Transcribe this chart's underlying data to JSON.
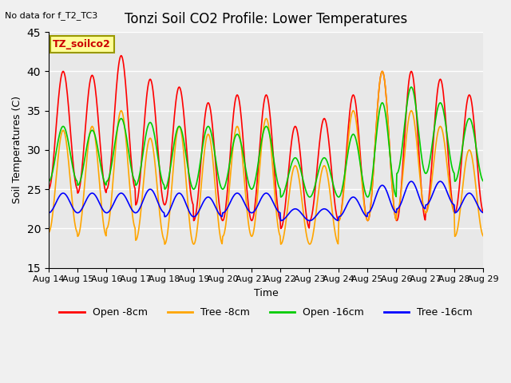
{
  "title": "Tonzi Soil CO2 Profile: Lower Temperatures",
  "subtitle": "No data for f_T2_TC3",
  "ylabel": "Soil Temperatures (C)",
  "xlabel": "Time",
  "ylim": [
    15,
    45
  ],
  "yticks": [
    15,
    20,
    25,
    30,
    35,
    40,
    45
  ],
  "date_labels": [
    "Aug 14",
    "Aug 15",
    "Aug 16",
    "Aug 17",
    "Aug 18",
    "Aug 19",
    "Aug 20",
    "Aug 21",
    "Aug 22",
    "Aug 23",
    "Aug 24",
    "Aug 25",
    "Aug 26",
    "Aug 27",
    "Aug 28",
    "Aug 29"
  ],
  "plot_bg": "#e8e8e8",
  "legend_label": "TZ_soilco2",
  "legend_box_color": "#ffff99",
  "legend_text_color": "#cc0000",
  "series": {
    "open_8cm": {
      "color": "#ff0000",
      "label": "Open -8cm",
      "amplitude_day": [
        15,
        15,
        17,
        16,
        15,
        15,
        16,
        16,
        13,
        13,
        16,
        19,
        19,
        17,
        15,
        14
      ],
      "min_vals": [
        25,
        24.5,
        25,
        23,
        23,
        21,
        21,
        21,
        20,
        21,
        21,
        21,
        21,
        22,
        22,
        22
      ]
    },
    "tree_8cm": {
      "color": "#ffa500",
      "label": "Tree -8cm",
      "amplitude_day": [
        13,
        14,
        15,
        13,
        15,
        14,
        14,
        15,
        10,
        10,
        14,
        19,
        13,
        11,
        11,
        10
      ],
      "min_vals": [
        19.5,
        19,
        20,
        18.5,
        18,
        18,
        19,
        19,
        18,
        18,
        21,
        21,
        22,
        22,
        19,
        21
      ]
    },
    "open_16cm": {
      "color": "#00cc00",
      "label": "Open -16cm",
      "amplitude_day": [
        7,
        7,
        8,
        8,
        8,
        8,
        7,
        8,
        5,
        5,
        8,
        12,
        11,
        9,
        8,
        8
      ],
      "min_vals": [
        26,
        25.5,
        26,
        25.5,
        25,
        25,
        25,
        25,
        24,
        24,
        24,
        24,
        27,
        27,
        26,
        25
      ]
    },
    "tree_16cm": {
      "color": "#0000ff",
      "label": "Tree -16cm",
      "amplitude_day": [
        2.5,
        2.5,
        2.5,
        3,
        3,
        2.5,
        2.5,
        2.5,
        1.5,
        1.5,
        2.5,
        3.5,
        3.5,
        3,
        2.5,
        2
      ],
      "min_vals": [
        22,
        22,
        22,
        22,
        21.5,
        21.5,
        22,
        22,
        21,
        21,
        21.5,
        22,
        22.5,
        23,
        22,
        22
      ]
    }
  }
}
